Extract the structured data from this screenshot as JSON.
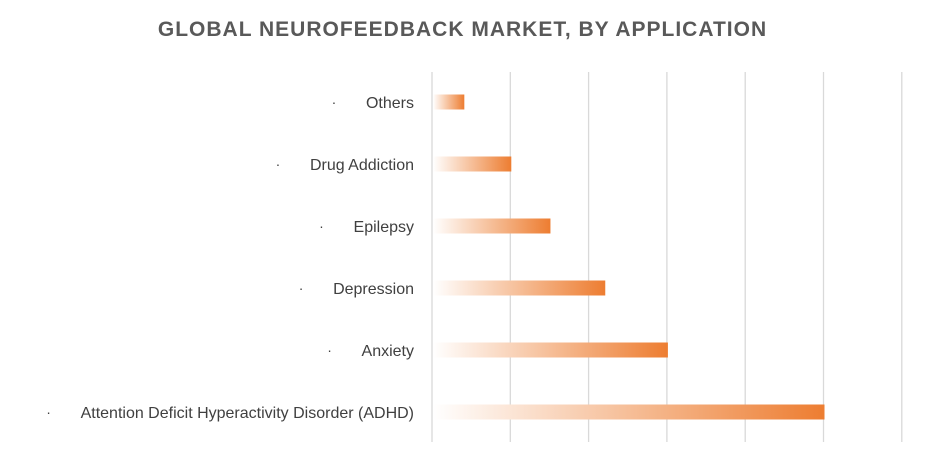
{
  "chart_data": {
    "type": "bar",
    "orientation": "horizontal",
    "title": "GLOBAL NEUROFEEDBACK MARKET, BY APPLICATION",
    "bullet": "·",
    "categories": [
      "Others",
      "Drug Addiction",
      "Epilepsy",
      "Depression",
      "Anxiety",
      "Attention Deficit Hyperactivity Disorder (ADHD)"
    ],
    "values": [
      0.4,
      1.0,
      1.5,
      2.2,
      3.0,
      5.0
    ],
    "xlim": [
      0,
      6
    ],
    "grid": true,
    "colors": {
      "bar": "#ed7d31",
      "bar_fade": "#ffffff",
      "grid": "#d9d9d9",
      "text": "#404040",
      "title": "#595959"
    }
  }
}
